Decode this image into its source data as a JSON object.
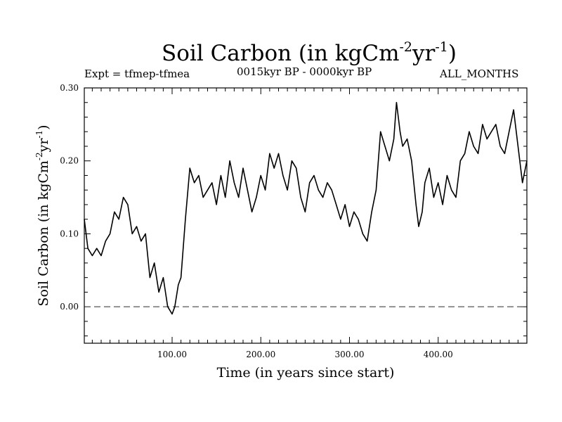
{
  "header": {
    "title_main": "Soil Carbon (in kgCm",
    "title_exp1": "-2",
    "title_mid": "yr",
    "title_exp2": "-1",
    "title_end": ")",
    "expt": "Expt = tfmep-tfmea",
    "period": "0015kyr BP - 0000kyr BP",
    "months": "ALL_MONTHS"
  },
  "colors": {
    "line": "#000000",
    "zero_line": "#555555",
    "background": "#ffffff"
  },
  "chart_data": {
    "type": "line",
    "title": "Soil Carbon (in kgCm-2yr-1)",
    "xlabel": "Time (in years since start)",
    "ylabel": "Soil Carbon (in kgCm-2yr-1)",
    "xlim": [
      1,
      500
    ],
    "ylim": [
      -0.05,
      0.3
    ],
    "x_ticks": [
      100,
      200,
      300,
      400
    ],
    "x_tick_labels": [
      "100.00",
      "200.00",
      "300.00",
      "400.00"
    ],
    "y_ticks": [
      0.0,
      0.1,
      0.2,
      0.3
    ],
    "y_tick_labels": [
      "0.00",
      "0.10",
      "0.20",
      "0.30"
    ],
    "reference_line": {
      "y": 0.0,
      "style": "dashed"
    },
    "grid": false,
    "series": [
      {
        "x": [
          1,
          5,
          10,
          15,
          20,
          25,
          30,
          35,
          40,
          45,
          50,
          55,
          60,
          65,
          70,
          75,
          80,
          85,
          90,
          95,
          100,
          103,
          107,
          110,
          115,
          120,
          125,
          130,
          135,
          140,
          145,
          150,
          155,
          160,
          165,
          170,
          175,
          180,
          185,
          190,
          195,
          200,
          205,
          210,
          215,
          220,
          225,
          230,
          235,
          240,
          245,
          250,
          255,
          260,
          265,
          270,
          275,
          280,
          285,
          290,
          295,
          300,
          305,
          310,
          315,
          320,
          325,
          330,
          335,
          340,
          345,
          350,
          353,
          357,
          360,
          365,
          370,
          375,
          378,
          382,
          385,
          390,
          395,
          400,
          405,
          410,
          415,
          420,
          425,
          430,
          435,
          440,
          445,
          450,
          455,
          460,
          465,
          470,
          475,
          480,
          485,
          490,
          495,
          500
        ],
        "values": [
          0.12,
          0.08,
          0.07,
          0.08,
          0.07,
          0.09,
          0.1,
          0.13,
          0.12,
          0.15,
          0.14,
          0.1,
          0.11,
          0.09,
          0.1,
          0.04,
          0.06,
          0.02,
          0.04,
          0.0,
          -0.01,
          0.0,
          0.03,
          0.04,
          0.12,
          0.19,
          0.17,
          0.18,
          0.15,
          0.16,
          0.17,
          0.14,
          0.18,
          0.15,
          0.2,
          0.17,
          0.15,
          0.19,
          0.16,
          0.13,
          0.15,
          0.18,
          0.16,
          0.21,
          0.19,
          0.21,
          0.18,
          0.16,
          0.2,
          0.19,
          0.15,
          0.13,
          0.17,
          0.18,
          0.16,
          0.15,
          0.17,
          0.16,
          0.14,
          0.12,
          0.14,
          0.11,
          0.13,
          0.12,
          0.1,
          0.09,
          0.13,
          0.16,
          0.24,
          0.22,
          0.2,
          0.23,
          0.28,
          0.24,
          0.22,
          0.23,
          0.2,
          0.14,
          0.11,
          0.13,
          0.17,
          0.19,
          0.15,
          0.17,
          0.14,
          0.18,
          0.16,
          0.15,
          0.2,
          0.21,
          0.24,
          0.22,
          0.21,
          0.25,
          0.23,
          0.24,
          0.25,
          0.22,
          0.21,
          0.24,
          0.27,
          0.22,
          0.17,
          0.2
        ]
      }
    ]
  }
}
